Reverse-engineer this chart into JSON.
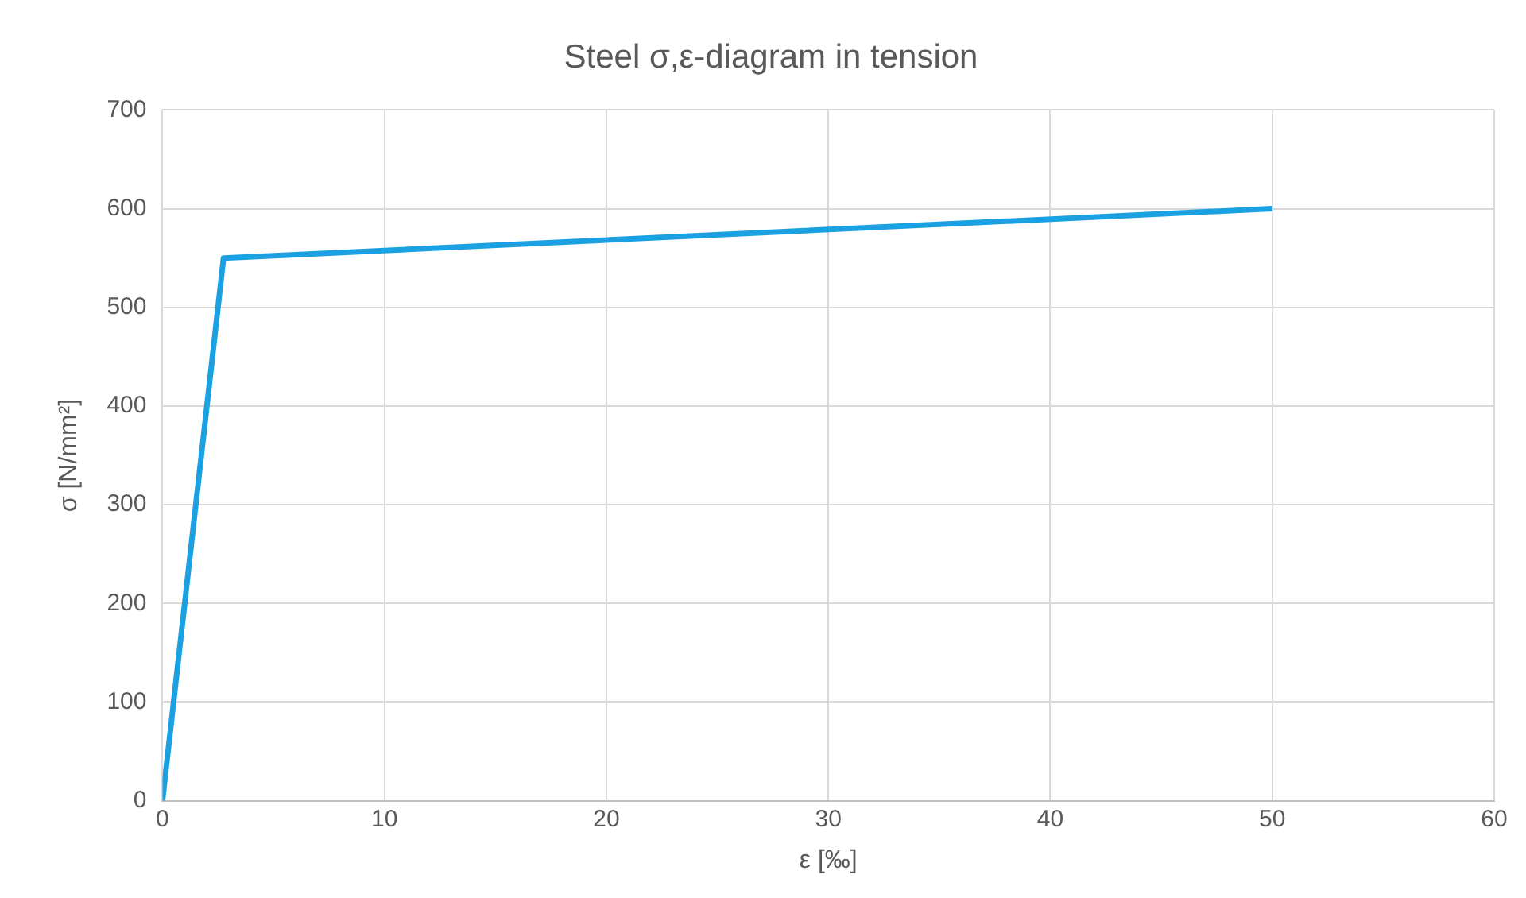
{
  "chart_data": {
    "type": "line",
    "title": "Steel σ,ε-diagram in tension",
    "xlabel": "ε [‰]",
    "ylabel": "σ [N/mm²]",
    "x": [
      0,
      2.75,
      50
    ],
    "series": [
      {
        "color": "#1ba1e2",
        "values": [
          0,
          550,
          600
        ]
      }
    ],
    "xlim": [
      0,
      60
    ],
    "xticks": [
      0,
      10,
      20,
      30,
      40,
      50,
      60
    ],
    "ylim": [
      0,
      700
    ],
    "yticks": [
      0,
      100,
      200,
      300,
      400,
      500,
      600,
      700
    ],
    "grid": true,
    "legend": false,
    "marker": "none",
    "line_style": "solid"
  }
}
